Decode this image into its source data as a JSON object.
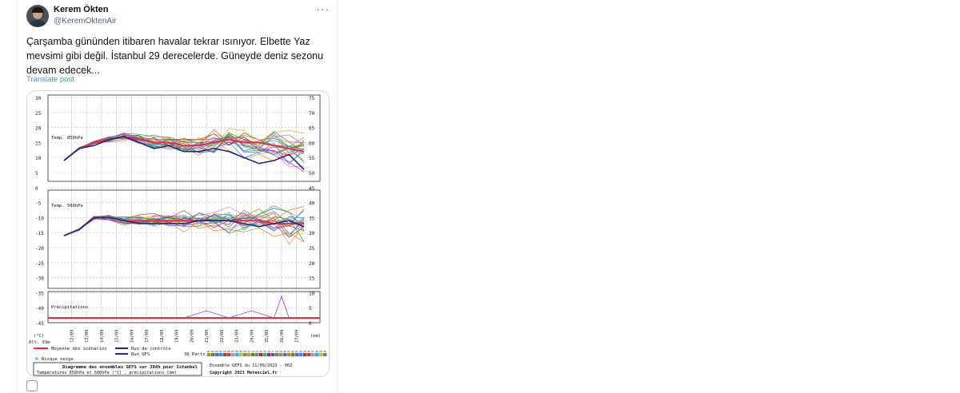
{
  "tweet": {
    "author_name": "Kerem Ökten",
    "author_handle": "@KeremOktenAir",
    "more_icon": "more-icon",
    "text": "Çarşamba gününden itibaren havalar tekrar ısınıyor. Elbette Yaz mevsimi gibi değil. İstanbul 29 derecelerde. Güneyde deniz sezonu devam edecek...",
    "translate_label": "Translate post"
  },
  "chart_data": {
    "type": "line",
    "title": "Diagramme des ensembles GEFS sur 384h pour Istanbul",
    "subtitle": "Températures 850hPa et 500hPa (°C) , précipitations (mm)",
    "ensemble_info": "Ensemble GEFS du 11/09/2023 - 06Z",
    "copyright": "Copyright 2023 Meteociel.fr",
    "panel_labels": [
      "Temp. 850hPa",
      "Temp. 500hPa",
      "Précipitations"
    ],
    "left_axis_label": "(°C)",
    "right_axis_label": "(mm)",
    "alt_label": "Alt. 93m",
    "left_ticks": [
      30,
      25,
      20,
      15,
      10,
      5,
      0,
      -5,
      -10,
      -15,
      -20,
      -25,
      -30,
      -35,
      -40,
      -45
    ],
    "right_ticks": [
      75,
      70,
      65,
      60,
      55,
      50,
      45,
      40,
      35,
      30,
      25,
      20,
      15,
      10,
      5,
      0
    ],
    "ylim": [
      -45,
      30
    ],
    "x_dates": [
      "12/09",
      "13/09",
      "14/09",
      "15/09",
      "16/09",
      "17/09",
      "18/09",
      "19/09",
      "20/09",
      "21/09",
      "22/09",
      "23/09",
      "24/09",
      "25/09",
      "26/09",
      "27/09"
    ],
    "series": [
      {
        "name": "Temp. 850hPa mean",
        "panel": "t850",
        "x": [
          0,
          24,
          48,
          72,
          96,
          120,
          144,
          168,
          192,
          216,
          240,
          264,
          288,
          312,
          336,
          360,
          384
        ],
        "values": [
          9,
          13,
          15,
          16,
          17,
          16,
          15,
          15,
          14,
          14,
          15,
          16,
          15,
          15,
          14,
          13,
          12
        ]
      },
      {
        "name": "Temp. 850hPa control",
        "panel": "t850",
        "x": [
          0,
          24,
          48,
          72,
          96,
          120,
          144,
          168,
          192,
          216,
          240,
          264,
          288,
          312,
          336,
          360,
          384
        ],
        "values": [
          9,
          13,
          14,
          16,
          17,
          15,
          13,
          14,
          12,
          12,
          13,
          12,
          10,
          8,
          9,
          11,
          6
        ]
      },
      {
        "name": "Temp. 500hPa mean",
        "panel": "t500",
        "x": [
          0,
          24,
          48,
          72,
          96,
          120,
          144,
          168,
          192,
          216,
          240,
          264,
          288,
          312,
          336,
          360,
          384
        ],
        "values": [
          -16,
          -14,
          -10,
          -10,
          -11,
          -11,
          -11,
          -11,
          -11,
          -11,
          -11,
          -11,
          -11,
          -11,
          -12,
          -12,
          -12
        ]
      },
      {
        "name": "Temp. 500hPa control",
        "panel": "t500",
        "x": [
          0,
          24,
          48,
          72,
          96,
          120,
          144,
          168,
          192,
          216,
          240,
          264,
          288,
          312,
          336,
          360,
          384
        ],
        "values": [
          -16,
          -14,
          -10,
          -10,
          -11,
          -12,
          -12,
          -12,
          -12,
          -11,
          -11,
          -11,
          -12,
          -13,
          -12,
          -11,
          -13
        ]
      },
      {
        "name": "Précipitations max member",
        "panel": "precip",
        "x": [
          0,
          96,
          192,
          228,
          264,
          300,
          336,
          348,
          360,
          384
        ],
        "values": [
          0,
          0,
          0,
          5,
          0,
          5,
          0,
          15,
          0,
          0
        ]
      }
    ],
    "legend": [
      "Moyenne des scénarios",
      "Run de contrôle",
      "Run GFS",
      "30 Perts.",
      "Risque neige"
    ],
    "member_numbers": [
      "01",
      "02",
      "03",
      "04",
      "05",
      "06",
      "07",
      "08",
      "09",
      "10",
      "11",
      "12",
      "13",
      "14",
      "15",
      "16",
      "17",
      "18",
      "19",
      "20",
      "21",
      "22",
      "23",
      "24",
      "25",
      "26",
      "27",
      "28",
      "29",
      "30"
    ],
    "colors": {
      "mean": "#e8303c",
      "control": "#1c2a8c",
      "gfs": "#25306e",
      "snow": "#7fc6e8",
      "grid": "#c8c8c8",
      "panel_line": "#555555"
    }
  }
}
